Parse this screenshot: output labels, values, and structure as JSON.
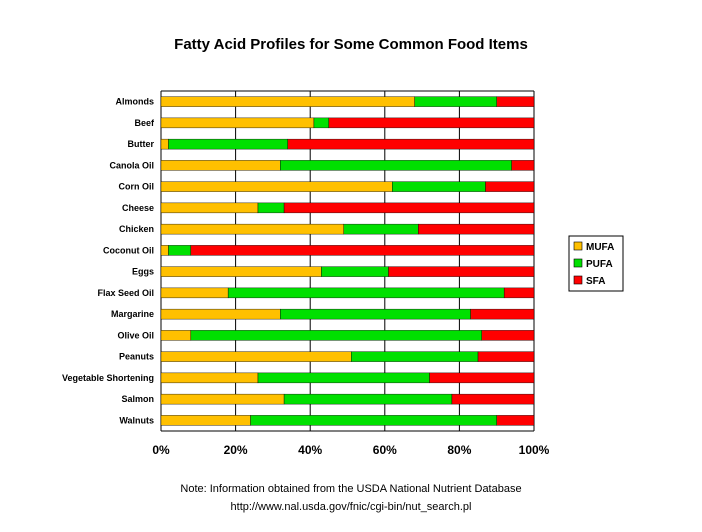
{
  "chart_data": {
    "type": "bar",
    "orientation": "horizontal",
    "stacked": true,
    "title": "Fatty Acid Profiles for Some Common Food Items",
    "categories": [
      "Almonds",
      "Beef",
      "Butter",
      "Canola Oil",
      "Corn Oil",
      "Cheese",
      "Chicken",
      "Coconut Oil",
      "Eggs",
      "Flax Seed Oil",
      "Margarine",
      "Olive Oil",
      "Peanuts",
      "Vegetable Shortening",
      "Salmon",
      "Walnuts"
    ],
    "series": [
      {
        "name": "MUFA",
        "color": "#FFC000",
        "values": [
          68,
          41,
          2,
          32,
          62,
          26,
          49,
          2,
          43,
          18,
          32,
          8,
          51,
          26,
          33,
          24
        ]
      },
      {
        "name": "PUFA",
        "color": "#00E000",
        "values": [
          22,
          4,
          32,
          62,
          25,
          7,
          20,
          6,
          18,
          74,
          51,
          78,
          34,
          46,
          45,
          66
        ]
      },
      {
        "name": "SFA",
        "color": "#FF0000",
        "values": [
          10,
          55,
          66,
          6,
          13,
          67,
          31,
          92,
          39,
          8,
          17,
          14,
          15,
          28,
          22,
          10
        ]
      }
    ],
    "xlim": [
      0,
      100
    ],
    "xticks": [
      "0%",
      "20%",
      "40%",
      "60%",
      "80%",
      "100%"
    ],
    "grid": true,
    "legend": "right"
  },
  "note": {
    "line1": "Note: Information obtained from the USDA National Nutrient Database",
    "line2": "http://www.nal.usda.gov/fnic/cgi-bin/nut_search.pl"
  }
}
